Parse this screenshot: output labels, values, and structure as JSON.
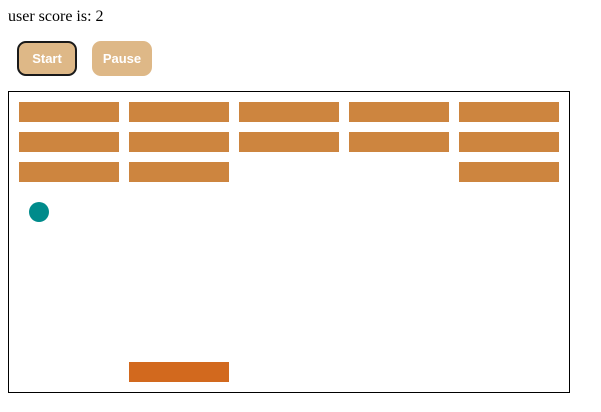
{
  "score": {
    "label": "user score is: 2"
  },
  "controls": {
    "start_label": "Start",
    "pause_label": "Pause"
  },
  "game": {
    "brick_grid": {
      "rows": 3,
      "cols": 5,
      "present": [
        [
          true,
          true,
          true,
          true,
          true
        ],
        [
          true,
          true,
          true,
          true,
          true
        ],
        [
          true,
          true,
          false,
          false,
          true
        ]
      ]
    },
    "colors": {
      "brick": "#cd853f",
      "paddle": "#d2691e",
      "ball": "#008b8b",
      "button": "#deb887"
    }
  }
}
